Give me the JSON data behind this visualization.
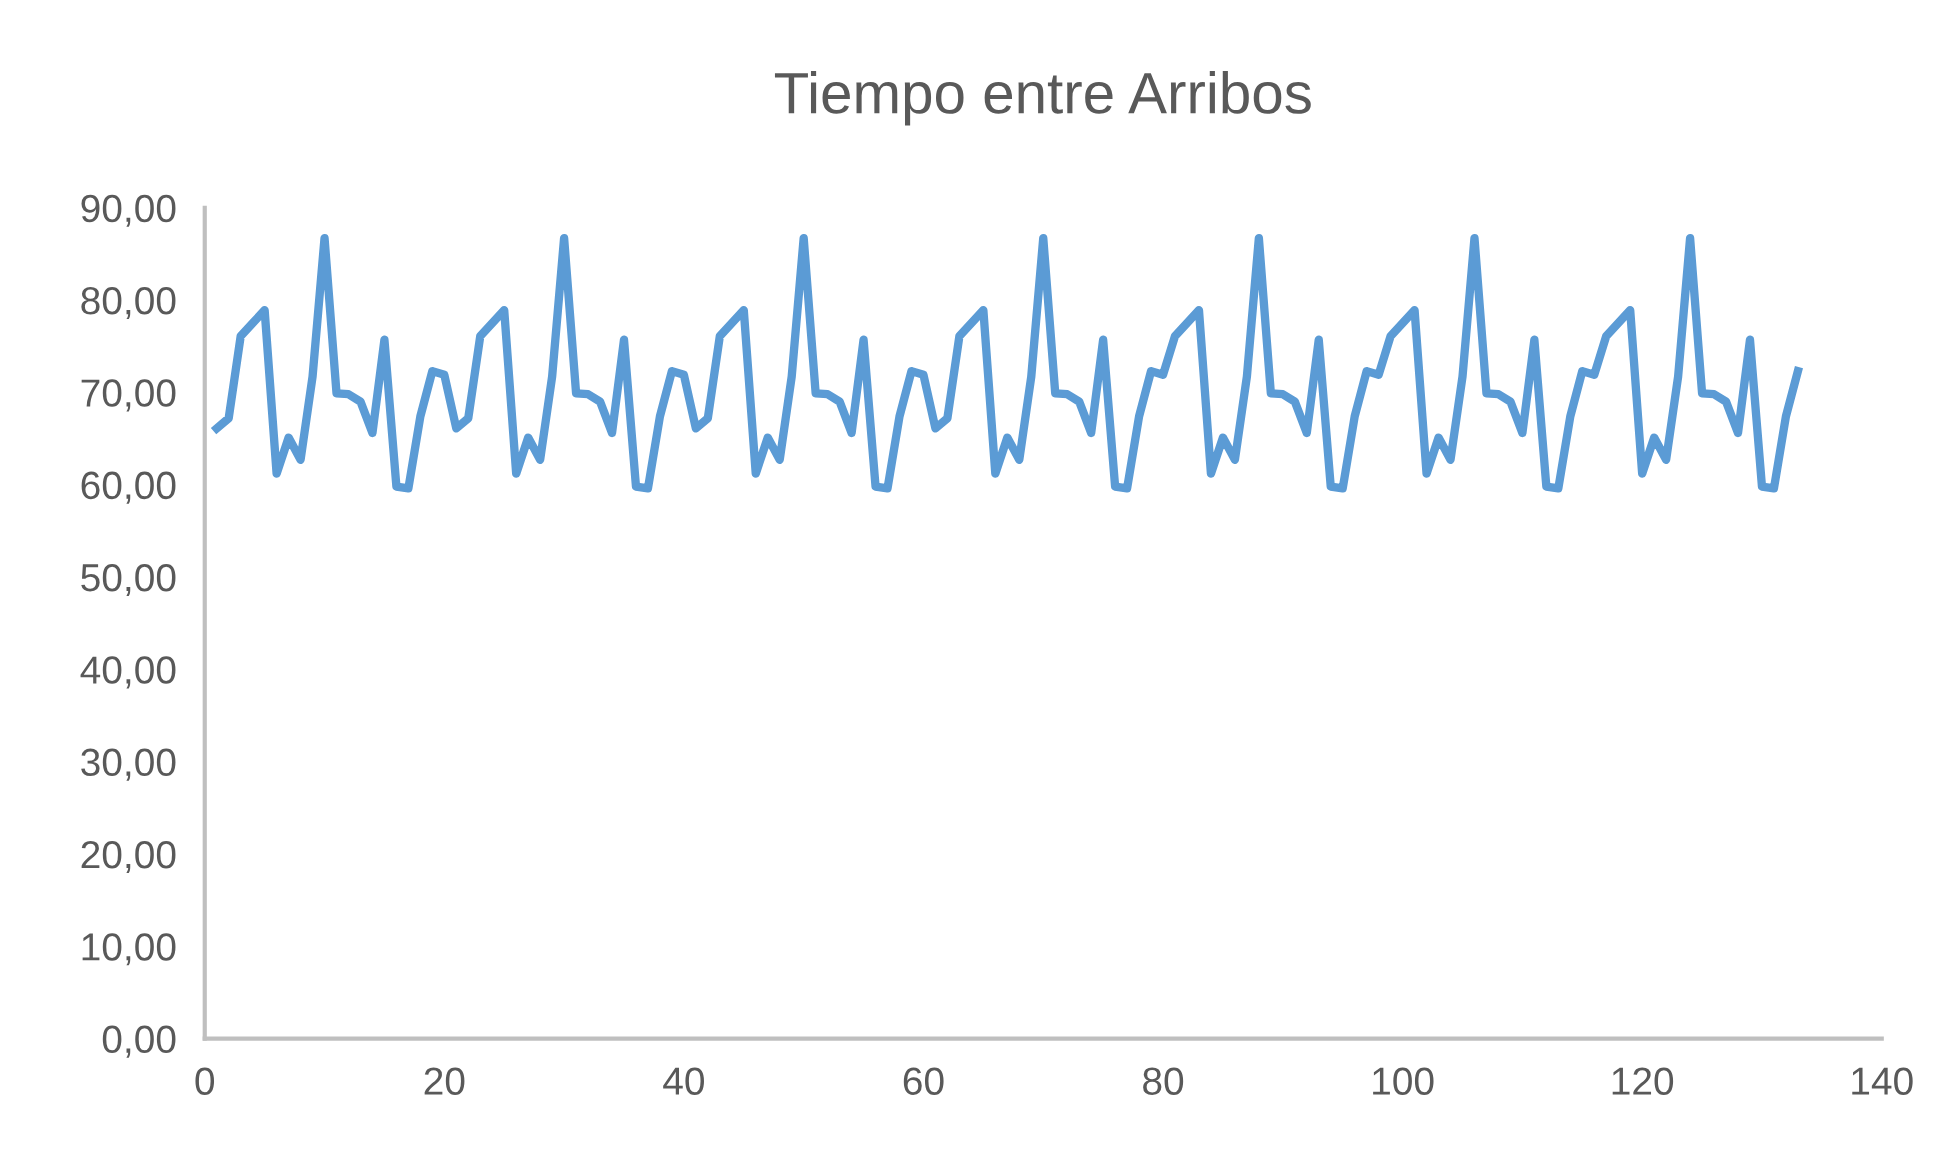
{
  "chart_data": {
    "type": "line",
    "title": "Tiempo entre Arribos",
    "x": [
      1,
      2,
      3,
      4,
      5,
      6,
      7,
      8,
      9,
      10,
      11,
      12,
      13,
      14,
      15,
      16,
      17,
      18,
      19,
      20,
      21,
      22,
      23,
      24,
      25,
      26,
      27,
      28,
      29,
      30,
      31,
      32,
      33,
      34,
      35,
      36,
      37,
      38,
      39,
      40,
      41,
      42,
      43,
      44,
      45,
      46,
      47,
      48,
      49,
      50,
      51,
      52,
      53,
      54,
      55,
      56,
      57,
      58,
      59,
      60,
      61,
      62,
      63,
      64,
      65,
      66,
      67,
      68,
      69,
      70,
      71,
      72,
      73,
      74,
      75,
      76,
      77,
      78,
      79,
      80,
      81,
      82,
      83,
      84,
      85,
      86,
      87,
      88,
      89,
      90,
      91,
      92,
      93,
      94,
      95,
      96,
      97,
      98,
      99,
      100,
      101,
      102,
      103,
      104,
      105,
      106,
      107,
      108,
      109,
      110,
      111,
      112,
      113,
      114,
      115,
      116,
      117,
      118,
      119,
      120,
      121,
      122,
      123,
      124,
      125,
      126,
      127,
      128,
      129,
      130,
      131,
      132,
      133
    ],
    "series": [
      {
        "color": "#5b9bd5",
        "values": [
          66.1,
          67.2,
          76.1,
          77.5,
          78.9,
          61.2,
          65.1,
          62.7,
          71.7,
          86.7,
          69.9,
          69.8,
          69.0,
          65.6,
          75.7,
          59.8,
          59.6,
          67.4,
          72.3,
          71.9,
          66.1,
          67.2,
          76.1,
          77.5,
          78.9,
          61.2,
          65.1,
          62.7,
          71.7,
          86.7,
          69.9,
          69.8,
          69.0,
          65.6,
          75.7,
          59.8,
          59.6,
          67.4,
          72.3,
          71.9,
          66.1,
          67.2,
          76.1,
          77.5,
          78.9,
          61.2,
          65.1,
          62.7,
          71.7,
          86.7,
          69.9,
          69.8,
          69.0,
          65.6,
          75.7,
          59.8,
          59.6,
          67.4,
          72.3,
          71.9,
          66.1,
          67.2,
          76.1,
          77.5,
          78.9,
          61.2,
          65.1,
          62.7,
          71.7,
          86.7,
          69.9,
          69.8,
          69.0,
          65.6,
          75.7,
          59.8,
          59.6,
          67.4,
          72.3,
          71.9,
          76.1,
          77.5,
          78.9,
          61.2,
          65.1,
          62.7,
          71.7,
          86.7,
          69.9,
          69.8,
          69.0,
          65.6,
          75.7,
          59.8,
          59.6,
          67.4,
          72.3,
          71.9,
          76.1,
          77.5,
          78.9,
          61.2,
          65.1,
          62.7,
          71.7,
          86.7,
          69.9,
          69.8,
          69.0,
          65.6,
          75.7,
          59.8,
          59.6,
          67.4,
          72.3,
          71.9,
          76.1,
          77.5,
          78.9,
          61.2,
          65.1,
          62.7,
          71.7,
          86.7,
          69.9,
          69.8,
          69.0,
          65.6,
          75.7,
          59.8,
          59.6,
          67.4,
          72.3
        ]
      }
    ],
    "xlim": [
      0,
      140
    ],
    "xticks": [
      0,
      20,
      40,
      60,
      80,
      100,
      120,
      140
    ],
    "ylim": [
      0,
      90
    ],
    "yticks": [
      {
        "value": 0,
        "label": "0,00"
      },
      {
        "value": 10,
        "label": "10,00"
      },
      {
        "value": 20,
        "label": "20,00"
      },
      {
        "value": 30,
        "label": "30,00"
      },
      {
        "value": 40,
        "label": "40,00"
      },
      {
        "value": 50,
        "label": "50,00"
      },
      {
        "value": 60,
        "label": "60,00"
      },
      {
        "value": 70,
        "label": "70,00"
      },
      {
        "value": 80,
        "label": "80,00"
      },
      {
        "value": 90,
        "label": "90,00"
      }
    ],
    "grid": false,
    "marker": "none",
    "line_style": "solid"
  }
}
